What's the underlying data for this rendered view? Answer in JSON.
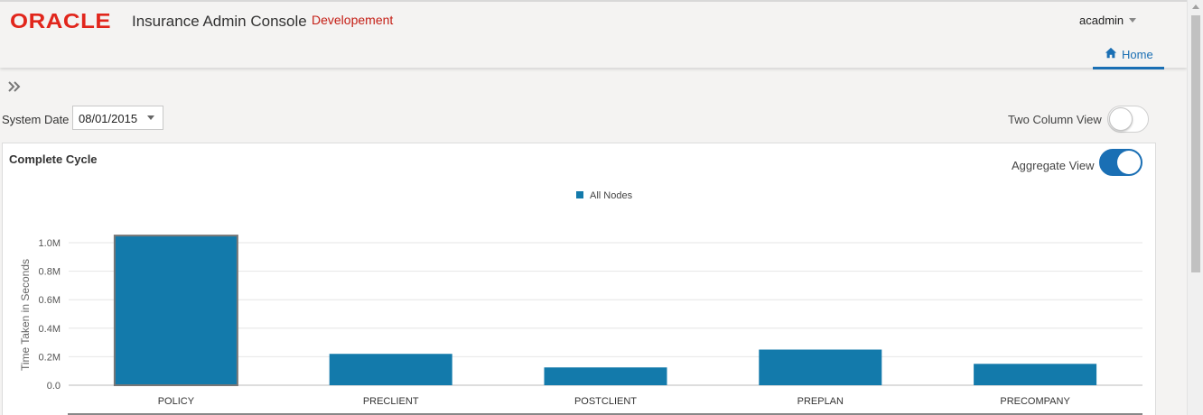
{
  "header": {
    "logo": "ORACLE",
    "app_title": "Insurance Admin Console",
    "environment": "Developement",
    "user": "acadmin",
    "home_tab": "Home"
  },
  "toolbar": {
    "system_date_label": "System Date",
    "system_date_value": "08/01/2015",
    "two_column_label": "Two Column View",
    "two_column_on": false
  },
  "panel": {
    "title": "Complete Cycle",
    "aggregate_label": "Aggregate View",
    "aggregate_on": true
  },
  "colors": {
    "bar": "#137aab",
    "accent": "#1a6fb4",
    "brand": "#e1261c"
  },
  "chart_data": {
    "type": "bar",
    "categories": [
      "POLICY",
      "PRECLIENT",
      "POSTCLIENT",
      "PREPLAN",
      "PRECOMPANY"
    ],
    "series": [
      {
        "name": "All Nodes",
        "values": [
          1050000,
          220000,
          125000,
          250000,
          150000
        ]
      }
    ],
    "ylabel": "Time Taken in Seconds",
    "ylim": [
      0,
      1000000
    ],
    "yticks": [
      "0.0",
      "0.2M",
      "0.4M",
      "0.6M",
      "0.8M",
      "1.0M"
    ],
    "grid": true,
    "legend": "top-center"
  }
}
